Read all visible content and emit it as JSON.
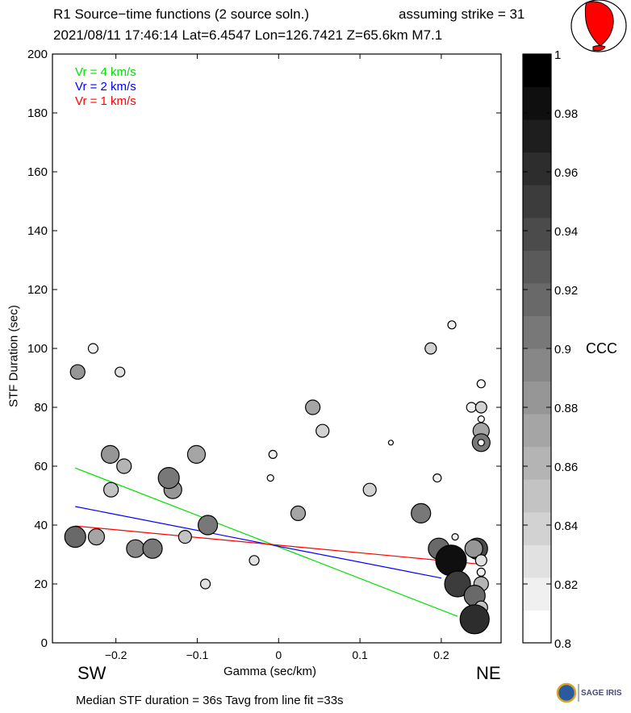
{
  "header": {
    "title": "R1 Source−time functions (2 source soln.)",
    "strike": "assuming strike = 31",
    "event": "2021/08/11 17:46:14  Lat=6.4547 Lon=126.7421  Z=65.6km  M7.1"
  },
  "footer": {
    "summary": "Median STF duration = 36s    Tavg from line fit =33s",
    "logo_text": "SAGE IRIS"
  },
  "direction_labels": {
    "left": "SW",
    "right": "NE"
  },
  "beachball": {
    "fill_color": "#ff0000"
  },
  "chart_data": {
    "type": "scatter",
    "title": "R1 Source−time functions (2 source soln.)",
    "xlabel": "Gamma (sec/km)",
    "ylabel": "STF Duration (sec)",
    "xlim": [
      -0.278,
      0.2735
    ],
    "ylim": [
      0,
      200
    ],
    "xticks": [
      -0.2,
      -0.1,
      0,
      0.1,
      0.2
    ],
    "xtick_labels": [
      "−0.2",
      "−0.1",
      "0",
      "0.1",
      "0.2"
    ],
    "yticks": [
      0,
      20,
      40,
      60,
      80,
      100,
      120,
      140,
      160,
      180,
      200
    ],
    "ytick_labels": [
      "0",
      "20",
      "40",
      "60",
      "80",
      "100",
      "120",
      "140",
      "160",
      "180",
      "200"
    ],
    "grid": false,
    "legend": {
      "placement": "top-left",
      "entries": [
        {
          "label": "Vr = 4 km/s",
          "color": "#00e000"
        },
        {
          "label": "Vr = 2 km/s",
          "color": "#0000ff"
        },
        {
          "label": "Vr = 1 km/s",
          "color": "#ff0000"
        }
      ]
    },
    "fit_lines": [
      {
        "name": "Vr = 4 km/s",
        "color": "#00e000",
        "x": [
          -0.25,
          0.22
        ],
        "y": [
          59.4,
          9.0
        ]
      },
      {
        "name": "Vr = 2 km/s",
        "color": "#0000ff",
        "x": [
          -0.25,
          0.2
        ],
        "y": [
          46.3,
          22.0
        ]
      },
      {
        "name": "Vr = 1 km/s",
        "color": "#ff0000",
        "x": [
          -0.25,
          0.245
        ],
        "y": [
          39.7,
          26.8
        ]
      }
    ],
    "points": [
      {
        "x": -0.247,
        "y": 92,
        "ccc": 0.88,
        "size": 9
      },
      {
        "x": -0.228,
        "y": 100,
        "ccc": 0.82,
        "size": 6
      },
      {
        "x": -0.195,
        "y": 92,
        "ccc": 0.83,
        "size": 6
      },
      {
        "x": -0.207,
        "y": 64,
        "ccc": 0.88,
        "size": 11
      },
      {
        "x": -0.19,
        "y": 60,
        "ccc": 0.86,
        "size": 9
      },
      {
        "x": -0.206,
        "y": 52,
        "ccc": 0.85,
        "size": 9
      },
      {
        "x": -0.13,
        "y": 52,
        "ccc": 0.88,
        "size": 11
      },
      {
        "x": -0.135,
        "y": 56,
        "ccc": 0.91,
        "size": 13
      },
      {
        "x": -0.101,
        "y": 64,
        "ccc": 0.87,
        "size": 11
      },
      {
        "x": -0.25,
        "y": 36,
        "ccc": 0.92,
        "size": 13
      },
      {
        "x": -0.224,
        "y": 36,
        "ccc": 0.87,
        "size": 10
      },
      {
        "x": -0.176,
        "y": 32,
        "ccc": 0.89,
        "size": 11
      },
      {
        "x": -0.155,
        "y": 32,
        "ccc": 0.91,
        "size": 12
      },
      {
        "x": -0.115,
        "y": 36,
        "ccc": 0.85,
        "size": 8
      },
      {
        "x": -0.087,
        "y": 40,
        "ccc": 0.91,
        "size": 12
      },
      {
        "x": -0.09,
        "y": 20,
        "ccc": 0.83,
        "size": 6
      },
      {
        "x": -0.03,
        "y": 28,
        "ccc": 0.83,
        "size": 6
      },
      {
        "x": 0.042,
        "y": 80,
        "ccc": 0.87,
        "size": 9
      },
      {
        "x": 0.054,
        "y": 72,
        "ccc": 0.84,
        "size": 8
      },
      {
        "x": -0.007,
        "y": 64,
        "ccc": 0.82,
        "size": 5
      },
      {
        "x": -0.01,
        "y": 56,
        "ccc": 0.8,
        "size": 4
      },
      {
        "x": 0.024,
        "y": 44,
        "ccc": 0.87,
        "size": 9
      },
      {
        "x": 0.112,
        "y": 52,
        "ccc": 0.84,
        "size": 8
      },
      {
        "x": 0.138,
        "y": 68,
        "ccc": 0.8,
        "size": 3
      },
      {
        "x": 0.213,
        "y": 108,
        "ccc": 0.82,
        "size": 5
      },
      {
        "x": 0.187,
        "y": 100,
        "ccc": 0.84,
        "size": 7
      },
      {
        "x": 0.195,
        "y": 56,
        "ccc": 0.82,
        "size": 5
      },
      {
        "x": 0.175,
        "y": 44,
        "ccc": 0.91,
        "size": 12
      },
      {
        "x": 0.249,
        "y": 88,
        "ccc": 0.81,
        "size": 5
      },
      {
        "x": 0.237,
        "y": 80,
        "ccc": 0.82,
        "size": 6
      },
      {
        "x": 0.249,
        "y": 80,
        "ccc": 0.84,
        "size": 7
      },
      {
        "x": 0.249,
        "y": 76,
        "ccc": 0.8,
        "size": 4
      },
      {
        "x": 0.249,
        "y": 72,
        "ccc": 0.87,
        "size": 10
      },
      {
        "x": 0.249,
        "y": 68,
        "ccc": 0.9,
        "size": 11
      },
      {
        "x": 0.249,
        "y": 68,
        "ccc": 0.8,
        "size": 4
      },
      {
        "x": 0.217,
        "y": 36,
        "ccc": 0.82,
        "size": 4
      },
      {
        "x": 0.197,
        "y": 32,
        "ccc": 0.92,
        "size": 13
      },
      {
        "x": 0.244,
        "y": 32,
        "ccc": 0.94,
        "size": 13
      },
      {
        "x": 0.24,
        "y": 32,
        "ccc": 0.88,
        "size": 11
      },
      {
        "x": 0.249,
        "y": 28,
        "ccc": 0.83,
        "size": 7
      },
      {
        "x": 0.212,
        "y": 28,
        "ccc": 0.98,
        "size": 19
      },
      {
        "x": 0.249,
        "y": 24,
        "ccc": 0.82,
        "size": 5
      },
      {
        "x": 0.249,
        "y": 20,
        "ccc": 0.86,
        "size": 9
      },
      {
        "x": 0.22,
        "y": 20,
        "ccc": 0.95,
        "size": 16
      },
      {
        "x": 0.241,
        "y": 16,
        "ccc": 0.92,
        "size": 13
      },
      {
        "x": 0.249,
        "y": 12,
        "ccc": 0.85,
        "size": 8
      },
      {
        "x": 0.241,
        "y": 8,
        "ccc": 0.96,
        "size": 18
      }
    ],
    "colorbar": {
      "label": "CCC",
      "range": [
        0.8,
        1.0
      ],
      "ticks": [
        0.8,
        0.82,
        0.84,
        0.86,
        0.88,
        0.9,
        0.92,
        0.94,
        0.96,
        0.98,
        1
      ],
      "tick_labels": [
        "0.8",
        "0.82",
        "0.84",
        "0.86",
        "0.88",
        "0.9",
        "0.92",
        "0.94",
        "0.96",
        "0.98",
        "1"
      ],
      "levels": 18
    }
  }
}
